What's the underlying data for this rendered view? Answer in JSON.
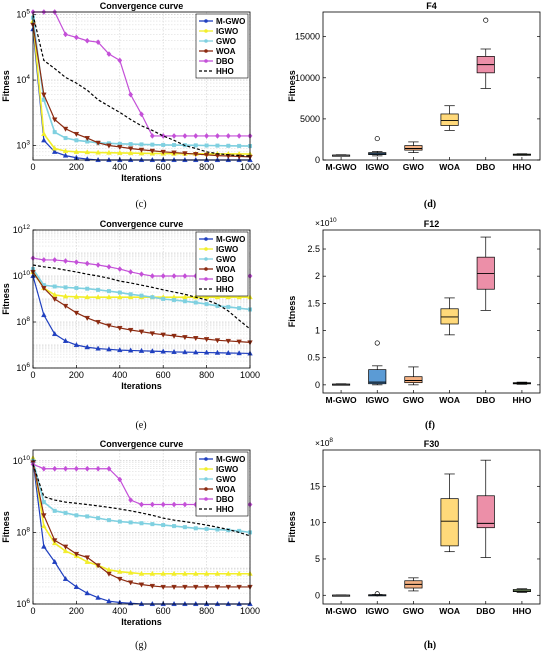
{
  "figure": {
    "panel_labels": [
      "(c)",
      "(d)",
      "(e)",
      "(f)",
      "(g)",
      "(h)"
    ]
  },
  "colors": {
    "M-GWO": "#1f3fbf",
    "IGWO": "#f2ee2a",
    "GWO": "#7fd0e0",
    "WOA": "#8b2a10",
    "DBO": "#c450d8",
    "HHO": "#000000",
    "box_M-GWO": "#e8e8e8",
    "box_IGWO": "#5b9bd5",
    "box_GWO": "#f4b183",
    "box_WOA": "#ffd97a",
    "box_DBO": "#ec8fa8",
    "box_HHO": "#a9d18e"
  },
  "chart_data": [
    {
      "type": "line",
      "title": "Convergence curve",
      "xlabel": "Iterations",
      "ylabel": "Fitness",
      "xlim": [
        0,
        1000
      ],
      "ylim": [
        600,
        110000
      ],
      "yscale": "log",
      "xticks": [
        0,
        200,
        400,
        600,
        800,
        1000
      ],
      "yticks": [
        {
          "v": 1000,
          "label": "10^3"
        },
        {
          "v": 10000,
          "label": "10^4"
        },
        {
          "v": 100000,
          "label": "10^5"
        }
      ],
      "grid": true,
      "legend": "top-right",
      "x": [
        0,
        50,
        100,
        150,
        200,
        250,
        300,
        350,
        400,
        450,
        500,
        550,
        600,
        650,
        700,
        750,
        800,
        850,
        900,
        950,
        1000
      ],
      "series": [
        {
          "name": "M-GWO",
          "values": [
            60000,
            1200,
            800,
            700,
            650,
            620,
            600,
            590,
            585,
            580,
            575,
            572,
            570,
            568,
            566,
            565,
            564,
            563,
            562,
            561,
            560
          ]
        },
        {
          "name": "IGWO",
          "values": [
            80000,
            1500,
            900,
            820,
            800,
            790,
            780,
            775,
            770,
            765,
            760,
            755,
            752,
            750,
            748,
            746,
            745,
            744,
            743,
            742,
            740
          ]
        },
        {
          "name": "GWO",
          "values": [
            90000,
            5000,
            1600,
            1300,
            1200,
            1150,
            1100,
            1080,
            1060,
            1050,
            1040,
            1030,
            1020,
            1015,
            1010,
            1005,
            1000,
            995,
            990,
            985,
            980
          ]
        },
        {
          "name": "WOA",
          "values": [
            70000,
            6000,
            2500,
            1800,
            1500,
            1300,
            1100,
            1000,
            950,
            900,
            860,
            830,
            800,
            780,
            760,
            740,
            720,
            700,
            690,
            680,
            670
          ]
        },
        {
          "name": "DBO",
          "values": [
            110000,
            110000,
            110000,
            50000,
            45000,
            40000,
            38000,
            25000,
            20000,
            6000,
            3000,
            1400,
            1400,
            1400,
            1400,
            1400,
            1400,
            1400,
            1400,
            1400,
            1400
          ]
        },
        {
          "name": "HHO",
          "values": [
            100000,
            20000,
            15000,
            11000,
            9000,
            7000,
            5000,
            4000,
            3200,
            2500,
            2000,
            1700,
            1400,
            1200,
            1000,
            900,
            800,
            750,
            720,
            700,
            690
          ]
        }
      ]
    },
    {
      "type": "box",
      "title": "F4",
      "ylabel": "Fitness",
      "ylim": [
        0,
        18000
      ],
      "yticks": [
        0,
        5000,
        10000,
        15000
      ],
      "categories": [
        "M-GWO",
        "IGWO",
        "GWO",
        "WOA",
        "DBO",
        "HHO"
      ],
      "boxes": [
        {
          "name": "M-GWO",
          "whislo": 520,
          "q1": 560,
          "med": 580,
          "q3": 600,
          "whishi": 640,
          "fliers": []
        },
        {
          "name": "IGWO",
          "whislo": 500,
          "q1": 650,
          "med": 750,
          "q3": 900,
          "whishi": 1050,
          "fliers": [
            2600
          ]
        },
        {
          "name": "GWO",
          "whislo": 900,
          "q1": 1200,
          "med": 1400,
          "q3": 1750,
          "whishi": 2200,
          "fliers": []
        },
        {
          "name": "WOA",
          "whislo": 3600,
          "q1": 4200,
          "med": 4800,
          "q3": 5600,
          "whishi": 6600,
          "fliers": []
        },
        {
          "name": "DBO",
          "whislo": 8700,
          "q1": 10600,
          "med": 11600,
          "q3": 12600,
          "whishi": 13500,
          "fliers": [
            17000
          ]
        },
        {
          "name": "HHO",
          "whislo": 580,
          "q1": 640,
          "med": 680,
          "q3": 720,
          "whishi": 760,
          "fliers": []
        }
      ]
    },
    {
      "type": "line",
      "title": "Convergence curve",
      "xlabel": "Iterations",
      "ylabel": "Fitness",
      "xlim": [
        0,
        1000
      ],
      "ylim": [
        1000000,
        1000000000000
      ],
      "yscale": "log",
      "xticks": [
        0,
        200,
        400,
        600,
        800,
        1000
      ],
      "yticks": [
        {
          "v": 1000000,
          "label": "10^6"
        },
        {
          "v": 100000000,
          "label": "10^8"
        },
        {
          "v": 10000000000,
          "label": "10^10"
        },
        {
          "v": 1000000000000,
          "label": "10^12"
        }
      ],
      "grid": true,
      "legend": "top-right",
      "x": [
        0,
        50,
        100,
        150,
        200,
        250,
        300,
        350,
        400,
        450,
        500,
        550,
        600,
        650,
        700,
        750,
        800,
        850,
        900,
        950,
        1000
      ],
      "series": [
        {
          "name": "M-GWO",
          "values": [
            10000000000,
            200000000,
            30000000,
            15000000,
            10000000,
            8000000,
            7000000,
            6500000,
            6000000,
            5800000,
            5600000,
            5400000,
            5200000,
            5000000,
            4900000,
            4800000,
            4700000,
            4600000,
            4500000,
            4400000,
            4300000
          ]
        },
        {
          "name": "IGWO",
          "values": [
            15000000000,
            3000000000,
            1500000000,
            1300000000,
            1250000000,
            1200000000,
            1200000000,
            1200000000,
            1200000000,
            1200000000,
            1200000000,
            1200000000,
            1200000000,
            1200000000,
            1200000000,
            1200000000,
            1200000000,
            1200000000,
            1200000000,
            1200000000,
            1200000000
          ]
        },
        {
          "name": "GWO",
          "values": [
            20000000000,
            4000000000,
            3500000000,
            3200000000,
            3000000000,
            2800000000,
            2500000000,
            2200000000,
            1900000000,
            1600000000,
            1400000000,
            1200000000,
            1000000000,
            900000000,
            800000000,
            700000000,
            600000000,
            500000000,
            450000000,
            400000000,
            350000000
          ]
        },
        {
          "name": "WOA",
          "values": [
            15000000000,
            3000000000,
            1000000000,
            500000000,
            250000000,
            150000000,
            100000000,
            70000000,
            55000000,
            45000000,
            38000000,
            32000000,
            28000000,
            25000000,
            22000000,
            20000000,
            18000000,
            16000000,
            15000000,
            14000000,
            13000000
          ]
        },
        {
          "name": "DBO",
          "values": [
            60000000000,
            50000000000,
            50000000000,
            45000000000,
            40000000000,
            35000000000,
            30000000000,
            25000000000,
            20000000000,
            15000000000,
            12000000000,
            10000000000,
            10000000000,
            10000000000,
            10000000000,
            10000000000,
            10000000000,
            10000000000,
            10000000000,
            10000000000,
            10000000000
          ]
        },
        {
          "name": "HHO",
          "values": [
            30000000000,
            25000000000,
            22000000000,
            18000000000,
            15000000000,
            12000000000,
            10000000000,
            8000000000,
            6000000000,
            5000000000,
            4000000000,
            3200000000,
            2500000000,
            2000000000,
            1600000000,
            1200000000,
            900000000,
            600000000,
            300000000,
            120000000,
            50000000
          ]
        }
      ]
    },
    {
      "type": "box",
      "title": "F12",
      "ylabel": "Fitness",
      "exponent": "10^10",
      "ylim": [
        -0.15,
        2.85
      ],
      "yticks": [
        0,
        0.5,
        1,
        1.5,
        2,
        2.5
      ],
      "categories": [
        "M-GWO",
        "IGWO",
        "GWO",
        "WOA",
        "DBO",
        "HHO"
      ],
      "boxes": [
        {
          "name": "M-GWO",
          "whislo": 0,
          "q1": 0.005,
          "med": 0.01,
          "q3": 0.015,
          "whishi": 0.02,
          "fliers": []
        },
        {
          "name": "IGWO",
          "whislo": 0,
          "q1": 0.02,
          "med": 0.05,
          "q3": 0.28,
          "whishi": 0.35,
          "fliers": [
            0.77
          ]
        },
        {
          "name": "GWO",
          "whislo": 0,
          "q1": 0.04,
          "med": 0.08,
          "q3": 0.15,
          "whishi": 0.33,
          "fliers": []
        },
        {
          "name": "WOA",
          "whislo": 0.92,
          "q1": 1.12,
          "med": 1.25,
          "q3": 1.4,
          "whishi": 1.6,
          "fliers": []
        },
        {
          "name": "DBO",
          "whislo": 1.37,
          "q1": 1.76,
          "med": 2.05,
          "q3": 2.35,
          "whishi": 2.72,
          "fliers": []
        },
        {
          "name": "HHO",
          "whislo": 0.01,
          "q1": 0.02,
          "med": 0.03,
          "q3": 0.04,
          "whishi": 0.05,
          "fliers": []
        }
      ]
    },
    {
      "type": "line",
      "title": "Convergence curve",
      "xlabel": "Iterations",
      "ylabel": "Fitness",
      "xlim": [
        0,
        1000
      ],
      "ylim": [
        1000000,
        20000000000
      ],
      "yscale": "log",
      "xticks": [
        0,
        200,
        400,
        600,
        800,
        1000
      ],
      "yticks": [
        {
          "v": 1000000,
          "label": "10^6"
        },
        {
          "v": 100000000,
          "label": "10^8"
        },
        {
          "v": 10000000000,
          "label": "10^10"
        }
      ],
      "grid": true,
      "legend": "top-right",
      "x": [
        0,
        50,
        100,
        150,
        200,
        250,
        300,
        350,
        400,
        450,
        500,
        550,
        600,
        650,
        700,
        750,
        800,
        850,
        900,
        950,
        1000
      ],
      "series": [
        {
          "name": "M-GWO",
          "values": [
            10000000000,
            40000000,
            15000000,
            5000000,
            3000000,
            2000000,
            1500000,
            1200000,
            1100000,
            1050000,
            1000000,
            1000000,
            1000000,
            1000000,
            1000000,
            1000000,
            1000000,
            1000000,
            1000000,
            1000000,
            1000000
          ]
        },
        {
          "name": "IGWO",
          "values": [
            12000000000,
            150000000,
            50000000,
            30000000,
            22000000,
            15000000,
            12000000,
            9000000,
            8000000,
            7500000,
            7000000,
            7000000,
            7000000,
            7000000,
            7000000,
            7000000,
            7000000,
            7000000,
            7000000,
            7000000,
            7000000
          ]
        },
        {
          "name": "GWO",
          "values": [
            10000000000,
            700000000,
            400000000,
            350000000,
            300000000,
            280000000,
            250000000,
            220000000,
            200000000,
            190000000,
            180000000,
            170000000,
            160000000,
            150000000,
            140000000,
            130000000,
            125000000,
            120000000,
            115000000,
            110000000,
            100000000
          ]
        },
        {
          "name": "WOA",
          "values": [
            9000000000,
            300000000,
            60000000,
            40000000,
            25000000,
            20000000,
            12000000,
            7000000,
            5000000,
            4000000,
            3500000,
            3200000,
            3000000,
            3000000,
            3000000,
            3000000,
            3000000,
            3000000,
            3000000,
            3000000,
            3000000
          ]
        },
        {
          "name": "DBO",
          "values": [
            8000000000,
            6000000000,
            6000000000,
            6000000000,
            6000000000,
            6000000000,
            6000000000,
            6000000000,
            3000000000,
            800000000,
            600000000,
            600000000,
            600000000,
            600000000,
            600000000,
            600000000,
            600000000,
            600000000,
            600000000,
            600000000,
            600000000
          ]
        },
        {
          "name": "HHO",
          "values": [
            8000000000,
            1000000000,
            800000000,
            700000000,
            650000000,
            600000000,
            550000000,
            500000000,
            450000000,
            400000000,
            350000000,
            300000000,
            250000000,
            220000000,
            200000000,
            180000000,
            160000000,
            140000000,
            120000000,
            100000000,
            80000000
          ]
        }
      ]
    },
    {
      "type": "box",
      "title": "F30",
      "ylabel": "Fitness",
      "exponent": "10^8",
      "ylim": [
        -1.2,
        20
      ],
      "yticks": [
        0,
        5,
        10,
        15
      ],
      "categories": [
        "M-GWO",
        "IGWO",
        "GWO",
        "WOA",
        "DBO",
        "HHO"
      ],
      "boxes": [
        {
          "name": "M-GWO",
          "whislo": 0,
          "q1": 0.01,
          "med": 0.02,
          "q3": 0.03,
          "whishi": 0.05,
          "fliers": []
        },
        {
          "name": "IGWO",
          "whislo": 0,
          "q1": 0.03,
          "med": 0.05,
          "q3": 0.08,
          "whishi": 0.1,
          "fliers": [
            0.2
          ]
        },
        {
          "name": "GWO",
          "whislo": 0.6,
          "q1": 1.0,
          "med": 1.5,
          "q3": 2.0,
          "whishi": 2.4,
          "fliers": []
        },
        {
          "name": "WOA",
          "whislo": 6.0,
          "q1": 6.8,
          "med": 10.2,
          "q3": 13.3,
          "whishi": 16.7,
          "fliers": []
        },
        {
          "name": "DBO",
          "whislo": 5.2,
          "q1": 9.3,
          "med": 9.9,
          "q3": 13.7,
          "whishi": 18.6,
          "fliers": []
        },
        {
          "name": "HHO",
          "whislo": 0.4,
          "q1": 0.5,
          "med": 0.6,
          "q3": 0.8,
          "whishi": 0.9,
          "fliers": []
        }
      ]
    }
  ]
}
